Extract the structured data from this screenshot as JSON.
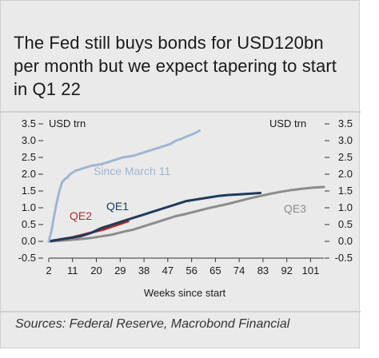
{
  "title": "The Fed still buys bonds for USD120bn  per month but we expect tapering to start in Q1 22",
  "source": "Sources: Federal Reserve, Macrobond Financial",
  "chart_data": {
    "type": "line",
    "title": "The Fed still buys bonds for USD120bn  per month but we expect tapering to start in Q1 22",
    "xlabel": "Weeks since start",
    "ylabel_left": "USD trn",
    "ylabel_right": "USD trn",
    "xlim": [
      2,
      106
    ],
    "ylim": [
      -0.5,
      3.5
    ],
    "xticks": [
      2,
      11,
      20,
      29,
      38,
      47,
      56,
      65,
      74,
      83,
      92,
      101
    ],
    "yticks": [
      -0.5,
      0.0,
      0.5,
      1.0,
      1.5,
      2.0,
      2.5,
      3.0,
      3.5
    ],
    "ytick_labels": [
      "-0.5",
      "0.0",
      "0.5",
      "1.0",
      "1.5",
      "2.0",
      "2.5",
      "3.0",
      "3.5"
    ],
    "grid": false,
    "series": [
      {
        "name": "Since March 11",
        "color": "#9fb6d1",
        "x": [
          2,
          3,
          4,
          5,
          6,
          7,
          8,
          9,
          10,
          12,
          14,
          16,
          18,
          22,
          26,
          30,
          34,
          38,
          42,
          46,
          48,
          50,
          52,
          54,
          56,
          58,
          59
        ],
        "y": [
          0.0,
          0.3,
          0.75,
          1.15,
          1.5,
          1.75,
          1.85,
          1.9,
          2.0,
          2.1,
          2.15,
          2.2,
          2.25,
          2.3,
          2.4,
          2.5,
          2.55,
          2.65,
          2.75,
          2.85,
          2.9,
          3.0,
          3.05,
          3.12,
          3.18,
          3.25,
          3.3
        ]
      },
      {
        "name": "QE1",
        "color": "#1f3a5a",
        "x": [
          2,
          6,
          10,
          14,
          18,
          22,
          26,
          30,
          34,
          38,
          42,
          46,
          50,
          54,
          58,
          62,
          66,
          70,
          74,
          78,
          82
        ],
        "y": [
          0.0,
          0.05,
          0.1,
          0.15,
          0.25,
          0.4,
          0.5,
          0.6,
          0.7,
          0.8,
          0.9,
          1.0,
          1.1,
          1.2,
          1.25,
          1.3,
          1.35,
          1.38,
          1.4,
          1.42,
          1.44
        ]
      },
      {
        "name": "QE2",
        "color": "#b02a2a",
        "x": [
          2,
          5,
          8,
          11,
          14,
          17,
          20,
          23,
          26,
          29,
          32
        ],
        "y": [
          0.0,
          0.04,
          0.08,
          0.12,
          0.18,
          0.24,
          0.3,
          0.36,
          0.44,
          0.52,
          0.6
        ]
      },
      {
        "name": "QE3",
        "color": "#8c8c8c",
        "x": [
          2,
          6,
          10,
          14,
          18,
          22,
          26,
          30,
          34,
          38,
          42,
          46,
          50,
          54,
          58,
          62,
          66,
          70,
          74,
          78,
          82,
          86,
          90,
          94,
          98,
          102,
          106
        ],
        "y": [
          0.0,
          0.02,
          0.04,
          0.07,
          0.1,
          0.15,
          0.2,
          0.28,
          0.35,
          0.45,
          0.55,
          0.65,
          0.75,
          0.82,
          0.9,
          0.98,
          1.05,
          1.12,
          1.2,
          1.28,
          1.35,
          1.42,
          1.48,
          1.53,
          1.57,
          1.6,
          1.62
        ]
      }
    ]
  }
}
